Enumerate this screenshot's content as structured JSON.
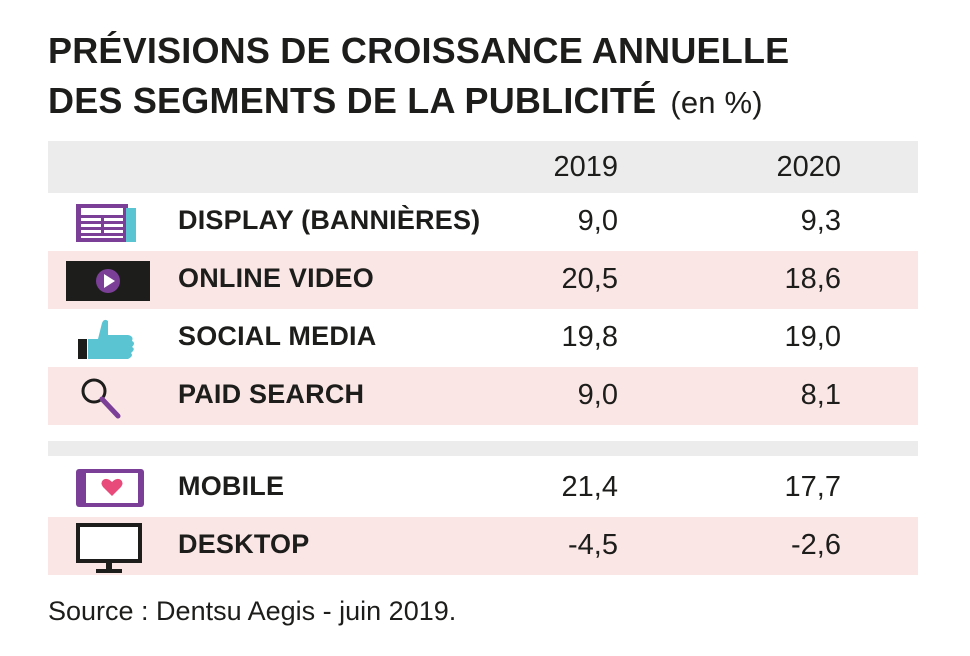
{
  "title_line1": "PRÉVISIONS DE CROISSANCE ANNUELLE",
  "title_line2": "DES SEGMENTS DE LA PUBLICITÉ",
  "title_unit": "(en %)",
  "columns": [
    "2019",
    "2020"
  ],
  "rows": [
    {
      "label": "DISPLAY (BANNIÈRES)",
      "icon": "newspaper-icon",
      "v2019": "9,0",
      "v2020": "9,3"
    },
    {
      "label": "ONLINE VIDEO",
      "icon": "video-play-icon",
      "v2019": "20,5",
      "v2020": "18,6"
    },
    {
      "label": "SOCIAL MEDIA",
      "icon": "thumbs-up-icon",
      "v2019": "19,8",
      "v2020": "19,0"
    },
    {
      "label": "PAID SEARCH",
      "icon": "magnifier-icon",
      "v2019": "9,0",
      "v2020": "8,1"
    },
    {
      "label": "MOBILE",
      "icon": "tablet-heart-icon",
      "v2019": "21,4",
      "v2020": "17,7"
    },
    {
      "label": "DESKTOP",
      "icon": "monitor-icon",
      "v2019": "-4,5",
      "v2020": "-2,6"
    }
  ],
  "source": "Source : Dentsu Aegis - juin 2019.",
  "colors": {
    "row_alt": "#fbe6e6",
    "header_bg": "#ececec",
    "accent_purple": "#7b3f98",
    "accent_teal": "#5bc4d3",
    "heart_pink": "#e84a7a"
  },
  "chart_data": {
    "type": "table",
    "title": "PRÉVISIONS DE CROISSANCE ANNUELLE DES SEGMENTS DE LA PUBLICITÉ (en %)",
    "columns": [
      "2019",
      "2020"
    ],
    "categories": [
      "DISPLAY (BANNIÈRES)",
      "ONLINE VIDEO",
      "SOCIAL MEDIA",
      "PAID SEARCH",
      "MOBILE",
      "DESKTOP"
    ],
    "series": [
      {
        "name": "2019",
        "values": [
          9.0,
          20.5,
          19.8,
          9.0,
          21.4,
          -4.5
        ]
      },
      {
        "name": "2020",
        "values": [
          9.3,
          18.6,
          19.0,
          8.1,
          17.7,
          -2.6
        ]
      }
    ]
  }
}
